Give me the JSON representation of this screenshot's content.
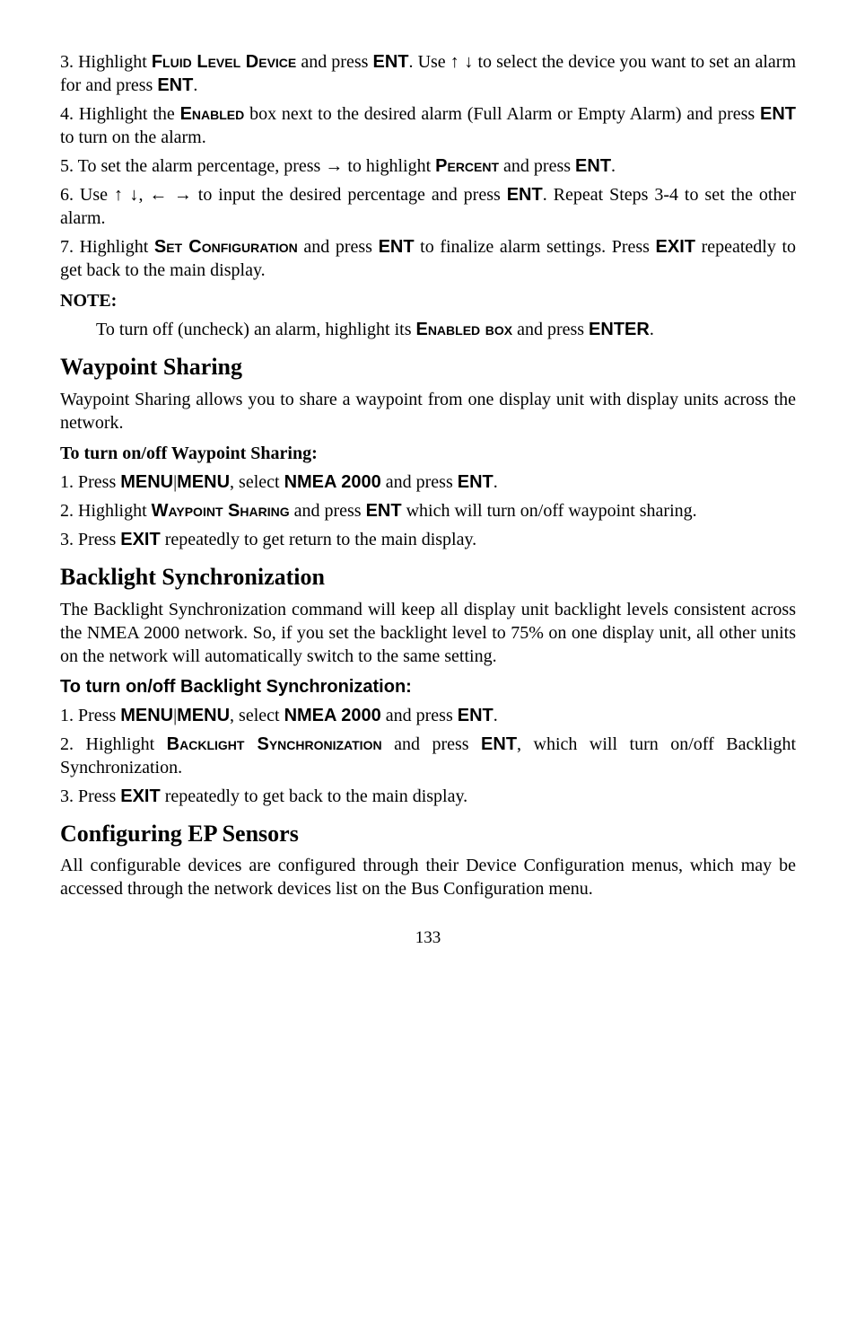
{
  "p1a": "3. Highlight ",
  "p1b": "Fluid Level Device",
  "p1c": " and press ",
  "p1d": "ENT",
  "p1e": ". Use ",
  "p1f": "↑ ↓",
  "p1g": " to select the device you want to set an alarm for and press ",
  "p1h": "ENT",
  "p1i": ".",
  "p2a": "4. Highlight the ",
  "p2b": "Enabled",
  "p2c": " box next to the desired alarm (Full Alarm or Empty Alarm) and press ",
  "p2d": "ENT",
  "p2e": " to turn on the alarm.",
  "p3a": "5. To set the alarm percentage, press ",
  "p3b": "→",
  "p3c": " to highlight ",
  "p3d": "Percent",
  "p3e": " and press ",
  "p3f": "ENT",
  "p3g": ".",
  "p4a": "6. Use ",
  "p4b": "↑ ↓",
  "p4c": ", ",
  "p4d": "← →",
  "p4e": " to input the desired percentage and press ",
  "p4f": "ENT",
  "p4g": ". Repeat Steps 3-4 to set the other alarm.",
  "p5a": "7. Highlight ",
  "p5b": "Set Configuration",
  "p5c": " and press ",
  "p5d": "ENT",
  "p5e": " to finalize alarm settings. Press ",
  "p5f": "EXIT",
  "p5g": " repeatedly to get back to the main display.",
  "note1": "NOTE:",
  "note1a": "To turn off (uncheck) an alarm, highlight its ",
  "note1b": "Enabled box",
  "note1c": " and press ",
  "note1d": "ENTER",
  "note1e": ".",
  "h1": "Waypoint Sharing",
  "wp1": "Waypoint Sharing allows you to share a waypoint from one display unit with display units across the network.",
  "wpSub": "To turn on/off Waypoint Sharing",
  "wpSubColon": ":",
  "wp2a": "1. Press ",
  "wp2b": "MENU",
  "wp2c": "|",
  "wp2d": "MENU",
  "wp2e": ", select ",
  "wp2f": "NMEA 2000",
  "wp2g": " and press ",
  "wp2h": "ENT",
  "wp2i": ".",
  "wp3a": "2. Highlight ",
  "wp3b": "Waypoint Sharing",
  "wp3c": " and press ",
  "wp3d": "ENT",
  "wp3e": " which will turn on/off waypoint sharing.",
  "wp4a": "3. Press ",
  "wp4b": "EXIT",
  "wp4c": " repeatedly to get return to the main display.",
  "h2": "Backlight Synchronization",
  "bl1": "The Backlight Synchronization command will keep all display unit backlight levels consistent across the NMEA 2000 network. So, if you set the backlight level to 75% on one display unit, all other units on the network will automatically switch to the same setting.",
  "blSub": "To turn on/off Backlight Synchronization:",
  "bl2a": "1. Press ",
  "bl2b": "MENU",
  "bl2c": "|",
  "bl2d": "MENU",
  "bl2e": ", select ",
  "bl2f": "NMEA 2000",
  "bl2g": " and press ",
  "bl2h": "ENT",
  "bl2i": ".",
  "bl3a": "2. Highlight ",
  "bl3b": "Backlight Synchronization",
  "bl3c": " and press ",
  "bl3d": "ENT",
  "bl3e": ", which will turn on/off Backlight Synchronization.",
  "bl4a": "3. Press ",
  "bl4b": "EXIT",
  "bl4c": " repeatedly to get back to the main display.",
  "h3": "Configuring EP Sensors",
  "ep1": "All configurable devices are configured through their Device Configuration menus, which may be accessed through the network devices list on the Bus Configuration menu.",
  "pagenum": "133"
}
